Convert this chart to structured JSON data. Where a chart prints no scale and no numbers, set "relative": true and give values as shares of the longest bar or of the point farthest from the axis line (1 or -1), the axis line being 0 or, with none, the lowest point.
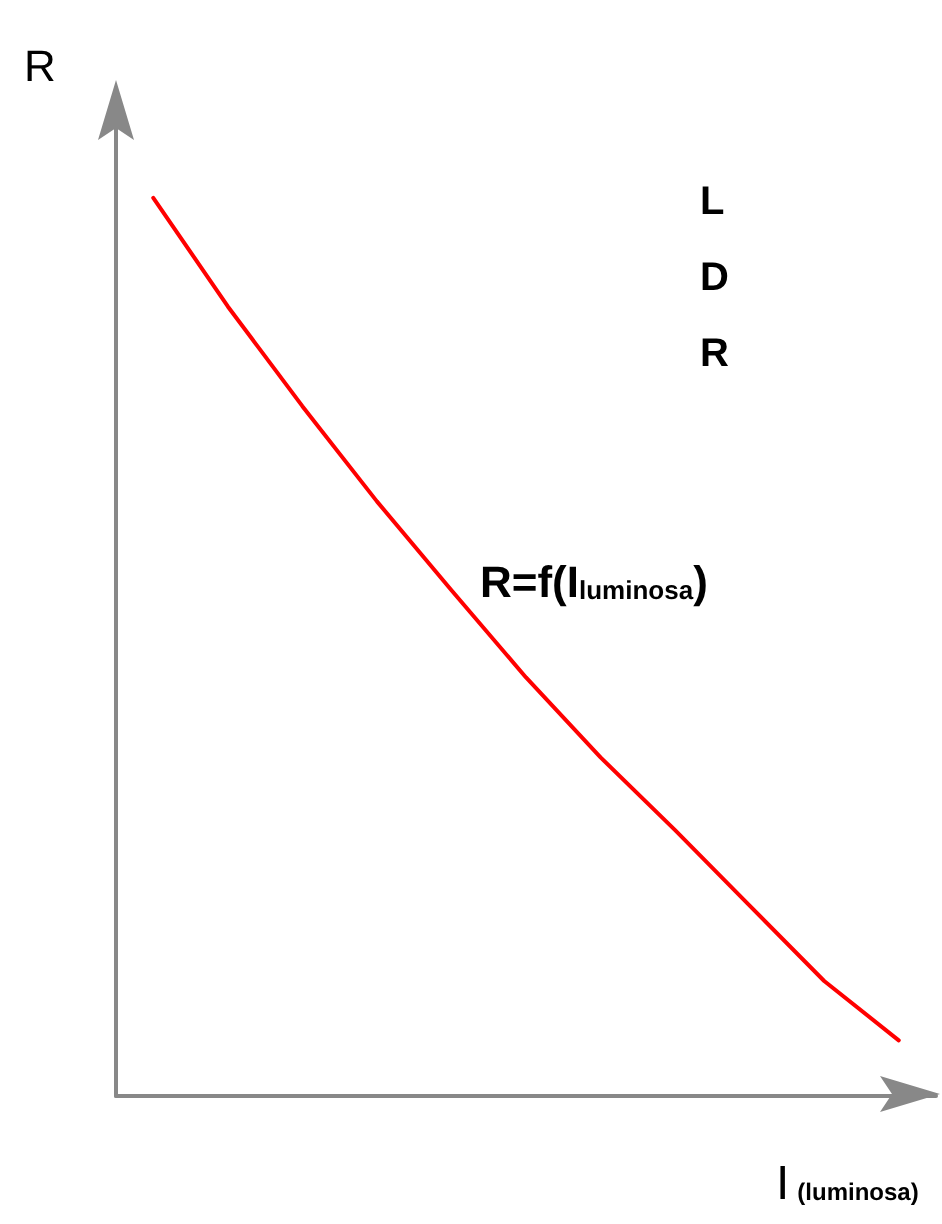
{
  "chart_data": {
    "type": "line",
    "relative": true,
    "ylabel": "R",
    "xlabel": "I$_{(luminosa)}$",
    "annotations": [
      "LDR",
      "R=f(I$_{luminosa}$)"
    ],
    "categories": [
      null,
      null,
      null,
      null,
      null,
      null,
      null,
      null,
      null,
      null,
      null
    ],
    "series": [
      {
        "color": "#ff0000",
        "values": [
          1,
          0.879,
          0.768,
          0.662,
          0.563,
          0.466,
          0.377,
          0.296,
          0.212,
          0.128,
          0.062
        ]
      }
    ],
    "marker": "none"
  }
}
